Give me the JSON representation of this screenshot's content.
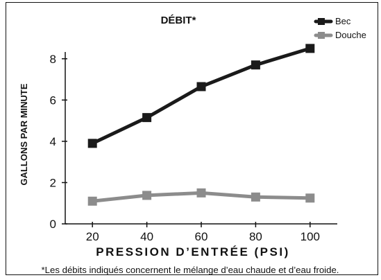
{
  "chart_data": {
    "type": "line",
    "title": "DÉBIT*",
    "xlabel": "PRESSION D’ENTRÉE (PSI)",
    "ylabel": "GALLONS PAR MINUTE",
    "x": [
      20,
      40,
      60,
      80,
      100
    ],
    "x_tick_labels": [
      "20",
      "40",
      "60",
      "80",
      "100"
    ],
    "y_tick_labels": [
      "0",
      "2",
      "4",
      "6",
      "8"
    ],
    "xlim": [
      10,
      110
    ],
    "ylim": [
      0,
      9
    ],
    "grid": false,
    "legend_position": "top-right",
    "series": [
      {
        "name": "Bec",
        "values": [
          3.9,
          5.15,
          6.65,
          7.7,
          8.5
        ],
        "color": "#1a1a1a",
        "marker": "square"
      },
      {
        "name": "Douche",
        "values": [
          1.1,
          1.38,
          1.5,
          1.3,
          1.25
        ],
        "color": "#8c8c8c",
        "marker": "square"
      }
    ],
    "footnote": "*Les débits indiqués concernent le mélange d’eau chaude et d’eau froide."
  }
}
